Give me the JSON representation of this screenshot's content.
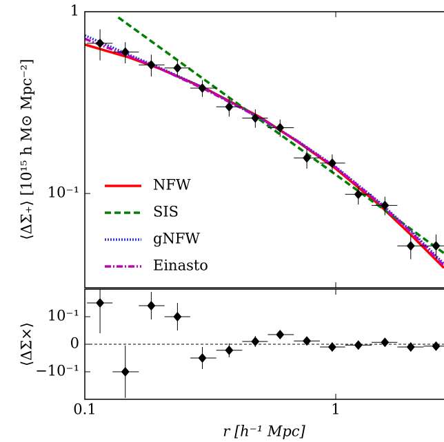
{
  "chart_data": [
    {
      "type": "errorbar",
      "ylabel": "⟨ΔΣ₊⟩ [10¹⁵ h M⊙ Mpc⁻²]",
      "log_x": true,
      "log_y": true,
      "xlim": [
        0.1,
        2.7
      ],
      "ylim": [
        0.0303,
        1
      ],
      "yticks": [
        1,
        {
          "value": 0.1,
          "label": "10⁻¹"
        }
      ],
      "x": [
        0.115,
        0.145,
        0.184,
        0.234,
        0.294,
        0.376,
        0.478,
        0.6,
        0.767,
        0.968,
        1.23,
        1.57,
        1.99,
        2.51
      ],
      "x_bin_edges": [
        0.102,
        0.129,
        0.164,
        0.208,
        0.263,
        0.334,
        0.424,
        0.536,
        0.681,
        0.865,
        1.09,
        1.39,
        1.76,
        2.24,
        2.83
      ],
      "values": [
        0.67,
        0.6,
        0.51,
        0.49,
        0.38,
        0.3,
        0.26,
        0.23,
        0.157,
        0.147,
        0.099,
        0.086,
        0.0515,
        0.0515
      ],
      "yerr": [
        0.13,
        0.08,
        0.07,
        0.05,
        0.04,
        0.035,
        0.03,
        0.025,
        0.02,
        0.017,
        0.012,
        0.01,
        0.008,
        0.008
      ],
      "marker_color": "#000000",
      "legend": "lower left",
      "series": [
        {
          "name": "NFW",
          "color": "#ff0000",
          "style": "solid",
          "x": [
            0.1,
            0.15,
            0.2,
            0.3,
            0.5,
            0.7,
            1,
            1.5,
            2,
            2.7
          ],
          "values": [
            0.66,
            0.56,
            0.485,
            0.38,
            0.263,
            0.194,
            0.137,
            0.086,
            0.059,
            0.039
          ]
        },
        {
          "name": "SIS",
          "color": "#008000",
          "style": "dashed",
          "x": [
            0.136,
            1,
            2.7
          ],
          "values": [
            0.93,
            0.127,
            0.047
          ]
        },
        {
          "name": "gNFW",
          "color": "#3333cc",
          "style": "dotted",
          "x": [
            0.1,
            0.15,
            0.2,
            0.3,
            0.5,
            0.7,
            1,
            1.5,
            2,
            2.7
          ],
          "values": [
            0.74,
            0.58,
            0.49,
            0.38,
            0.26,
            0.196,
            0.14,
            0.089,
            0.062,
            0.041
          ]
        },
        {
          "name": "Einasto",
          "color": "#bf00bf",
          "style": "dashdot",
          "x": [
            0.1,
            0.15,
            0.2,
            0.3,
            0.5,
            0.7,
            1,
            1.5,
            2,
            2.7
          ],
          "values": [
            0.71,
            0.57,
            0.485,
            0.375,
            0.26,
            0.195,
            0.139,
            0.088,
            0.061,
            0.04
          ]
        }
      ]
    },
    {
      "type": "errorbar",
      "ylabel": "⟨ΔΣ×⟩",
      "xlabel": "r [h⁻¹ Mpc]",
      "log_x": true,
      "log_y": false,
      "xlim": [
        0.1,
        2.7
      ],
      "ylim": [
        -0.2,
        0.2
      ],
      "xticks": [
        0.1,
        1
      ],
      "yticks": [
        {
          "value": 0.1,
          "label": "10⁻¹"
        },
        0,
        {
          "value": -0.1,
          "label": "−10⁻¹"
        }
      ],
      "hline": 0,
      "x": [
        0.115,
        0.145,
        0.184,
        0.234,
        0.294,
        0.376,
        0.478,
        0.6,
        0.767,
        0.968,
        1.23,
        1.57,
        1.99,
        2.51
      ],
      "x_bin_edges": [
        0.102,
        0.129,
        0.164,
        0.208,
        0.263,
        0.334,
        0.424,
        0.536,
        0.681,
        0.865,
        1.09,
        1.39,
        1.76,
        2.24,
        2.83
      ],
      "values": [
        0.15,
        -0.1,
        0.14,
        0.1,
        -0.05,
        -0.022,
        0.01,
        0.035,
        0.012,
        -0.01,
        -0.003,
        0.007,
        -0.01,
        -0.007
      ],
      "yerr": [
        0.11,
        0.095,
        0.05,
        0.05,
        0.04,
        0.025,
        0.02,
        0.015,
        0.01,
        0.01,
        0.008,
        0.007,
        0.006,
        0.005
      ],
      "marker_color": "#000000"
    }
  ]
}
